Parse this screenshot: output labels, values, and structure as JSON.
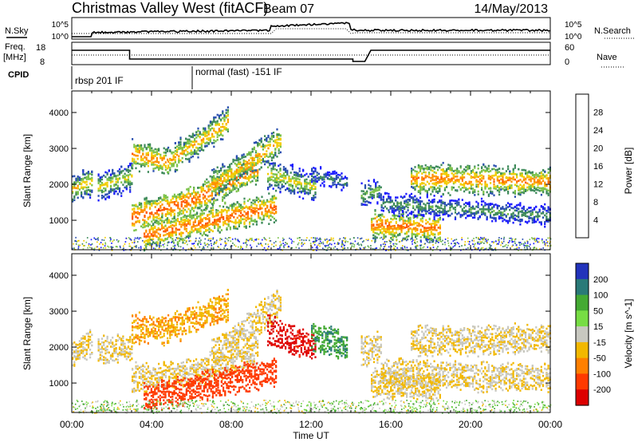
{
  "header": {
    "station": "Christmas Valley West (fitACF)",
    "beam": "Beam 07",
    "date": "14/May/2013"
  },
  "summary": {
    "nsky_label": "N.Sky",
    "nsearch_label": "N.Search",
    "range_top": "10^5",
    "range_bottom": "10^0",
    "freq_label": "Freq.",
    "freq_unit": "[MHz]",
    "freq_ticks": [
      "18",
      "8"
    ],
    "nave_label": "Nave",
    "nave_ticks": [
      "60",
      "0"
    ],
    "cpid_label": "CPID",
    "cpid_modes": [
      "rbsp 201 IF",
      "normal (fast) -151 IF"
    ]
  },
  "axes": {
    "ylabel": "Slant Range [km]",
    "xlabel": "Time UT",
    "yticks": [
      "1000",
      "2000",
      "3000",
      "4000"
    ],
    "xticks": [
      "00:00",
      "04:00",
      "08:00",
      "12:00",
      "16:00",
      "20:00",
      "00:00"
    ]
  },
  "power_scale": {
    "label": "Power [dB]",
    "ticks": [
      "4",
      "8",
      "12",
      "16",
      "20",
      "24",
      "28"
    ],
    "colors": [
      "#1a1aff",
      "#2a4fb0",
      "#3e8a5a",
      "#7cc24a",
      "#f2cc00",
      "#ff9000",
      "#ff5a00",
      "#ee0000"
    ]
  },
  "velocity_scale": {
    "label": "Velocity [m s^-1]",
    "ticks": [
      "200",
      "100",
      "50",
      "15",
      "-15",
      "-50",
      "-100",
      "-200"
    ],
    "colors": [
      "#2233bb",
      "#2a7a78",
      "#44aa33",
      "#77dd44",
      "#c8c8c0",
      "#f2b800",
      "#ff8000",
      "#ff3a00",
      "#dd0000"
    ]
  },
  "chart_data": {
    "type": "heatmap",
    "x_range_hours": [
      0,
      24
    ],
    "y_range_km": [
      180,
      4600
    ],
    "bands": [
      {
        "t": [
          0.0,
          1.0
        ],
        "r0": 1880,
        "r1": 2120,
        "v0": 1850,
        "v1": 2150,
        "pow": 20,
        "vel": -15
      },
      {
        "t": [
          1.3,
          3.0
        ],
        "r0": 1950,
        "r1": 2250,
        "v0": 1900,
        "v1": 2050,
        "pow": 18,
        "vel": -15
      },
      {
        "t": [
          3.0,
          6.2
        ],
        "r0": 1100,
        "r1": 1620,
        "v0": 1150,
        "v1": 1300,
        "pow": 27,
        "vel": -15
      },
      {
        "t": [
          6.2,
          9.3
        ],
        "r0": 1620,
        "r1": 2500,
        "v0": 1300,
        "v1": 1900,
        "pow": 26,
        "vel": -15
      },
      {
        "t": [
          3.0,
          4.8
        ],
        "r0": 2880,
        "r1": 2650,
        "v0": 2550,
        "v1": 2500,
        "pow": 24,
        "vel": -30
      },
      {
        "t": [
          4.8,
          7.8
        ],
        "r0": 2650,
        "r1": 3750,
        "v0": 2500,
        "v1": 3200,
        "pow": 22,
        "vel": -30
      },
      {
        "t": [
          7.0,
          10.5
        ],
        "r0": 2000,
        "r1": 3250,
        "v0": 1800,
        "v1": 3300,
        "pow": 22,
        "vel": -15
      },
      {
        "t": [
          3.6,
          10.2
        ],
        "r0": 600,
        "r1": 1400,
        "v0": 600,
        "v1": 1350,
        "pow": 26,
        "vel": -90
      },
      {
        "t": [
          9.8,
          12.2
        ],
        "r0": 2300,
        "r1": 1950,
        "v0": 2500,
        "v1": 2000,
        "pow": 18,
        "vel": -160
      },
      {
        "t": [
          12.0,
          13.8
        ],
        "r0": 2300,
        "r1": 2050,
        "v0": 2300,
        "v1": 2050,
        "pow": 10,
        "vel": 70
      },
      {
        "t": [
          14.5,
          15.5
        ],
        "r0": 1700,
        "r1": 1900,
        "v0": 1900,
        "v1": 2050,
        "pow": 14,
        "vel": -15
      },
      {
        "t": [
          15.0,
          18.5
        ],
        "r0": 900,
        "r1": 800,
        "v0": 1000,
        "v1": 900,
        "pow": 25,
        "vel": -15
      },
      {
        "t": [
          17.0,
          24.0
        ],
        "r0": 2200,
        "r1": 2100,
        "v0": 2200,
        "v1": 2250,
        "pow": 24,
        "vel": -15
      },
      {
        "t": [
          15.5,
          24.0
        ],
        "r0": 1500,
        "r1": 1150,
        "v0": 1300,
        "v1": 1150,
        "pow": 12,
        "vel": -15
      }
    ]
  }
}
